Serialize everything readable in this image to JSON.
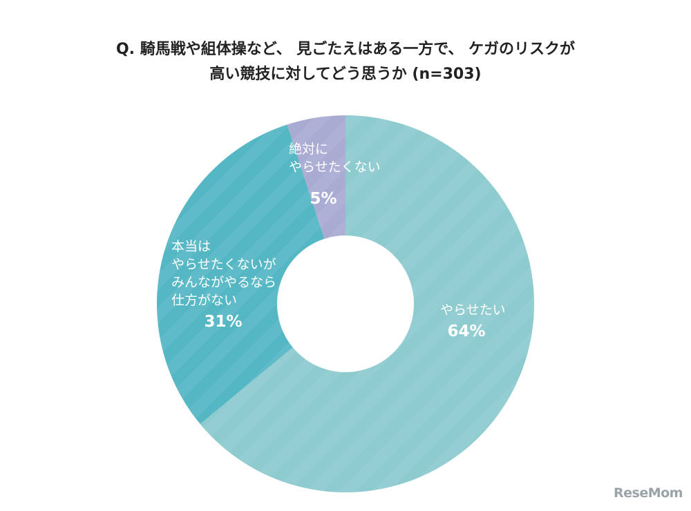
{
  "chart_data": {
    "type": "pie",
    "title_lines": [
      "Q. 騎馬戦や組体操など、 見ごたえはある一方で、 ケガのリスクが",
      "高い競技に対してどう思うか (n=303)"
    ],
    "donut": true,
    "legend": "none",
    "slices": [
      {
        "label_lines": [
          "やらせたい"
        ],
        "value": 64,
        "value_label": "64%",
        "color": "#8ecbcf"
      },
      {
        "label_lines": [
          "本当は",
          "やらせたくないが",
          "みんながやるなら",
          "仕方がない"
        ],
        "value": 31,
        "value_label": "31%",
        "color": "#55b7c4"
      },
      {
        "label_lines": [
          "絶対に",
          "やらせたくない"
        ],
        "value": 5,
        "value_label": "5%",
        "color": "#a9abd3"
      }
    ]
  },
  "watermark": "ReseMom"
}
